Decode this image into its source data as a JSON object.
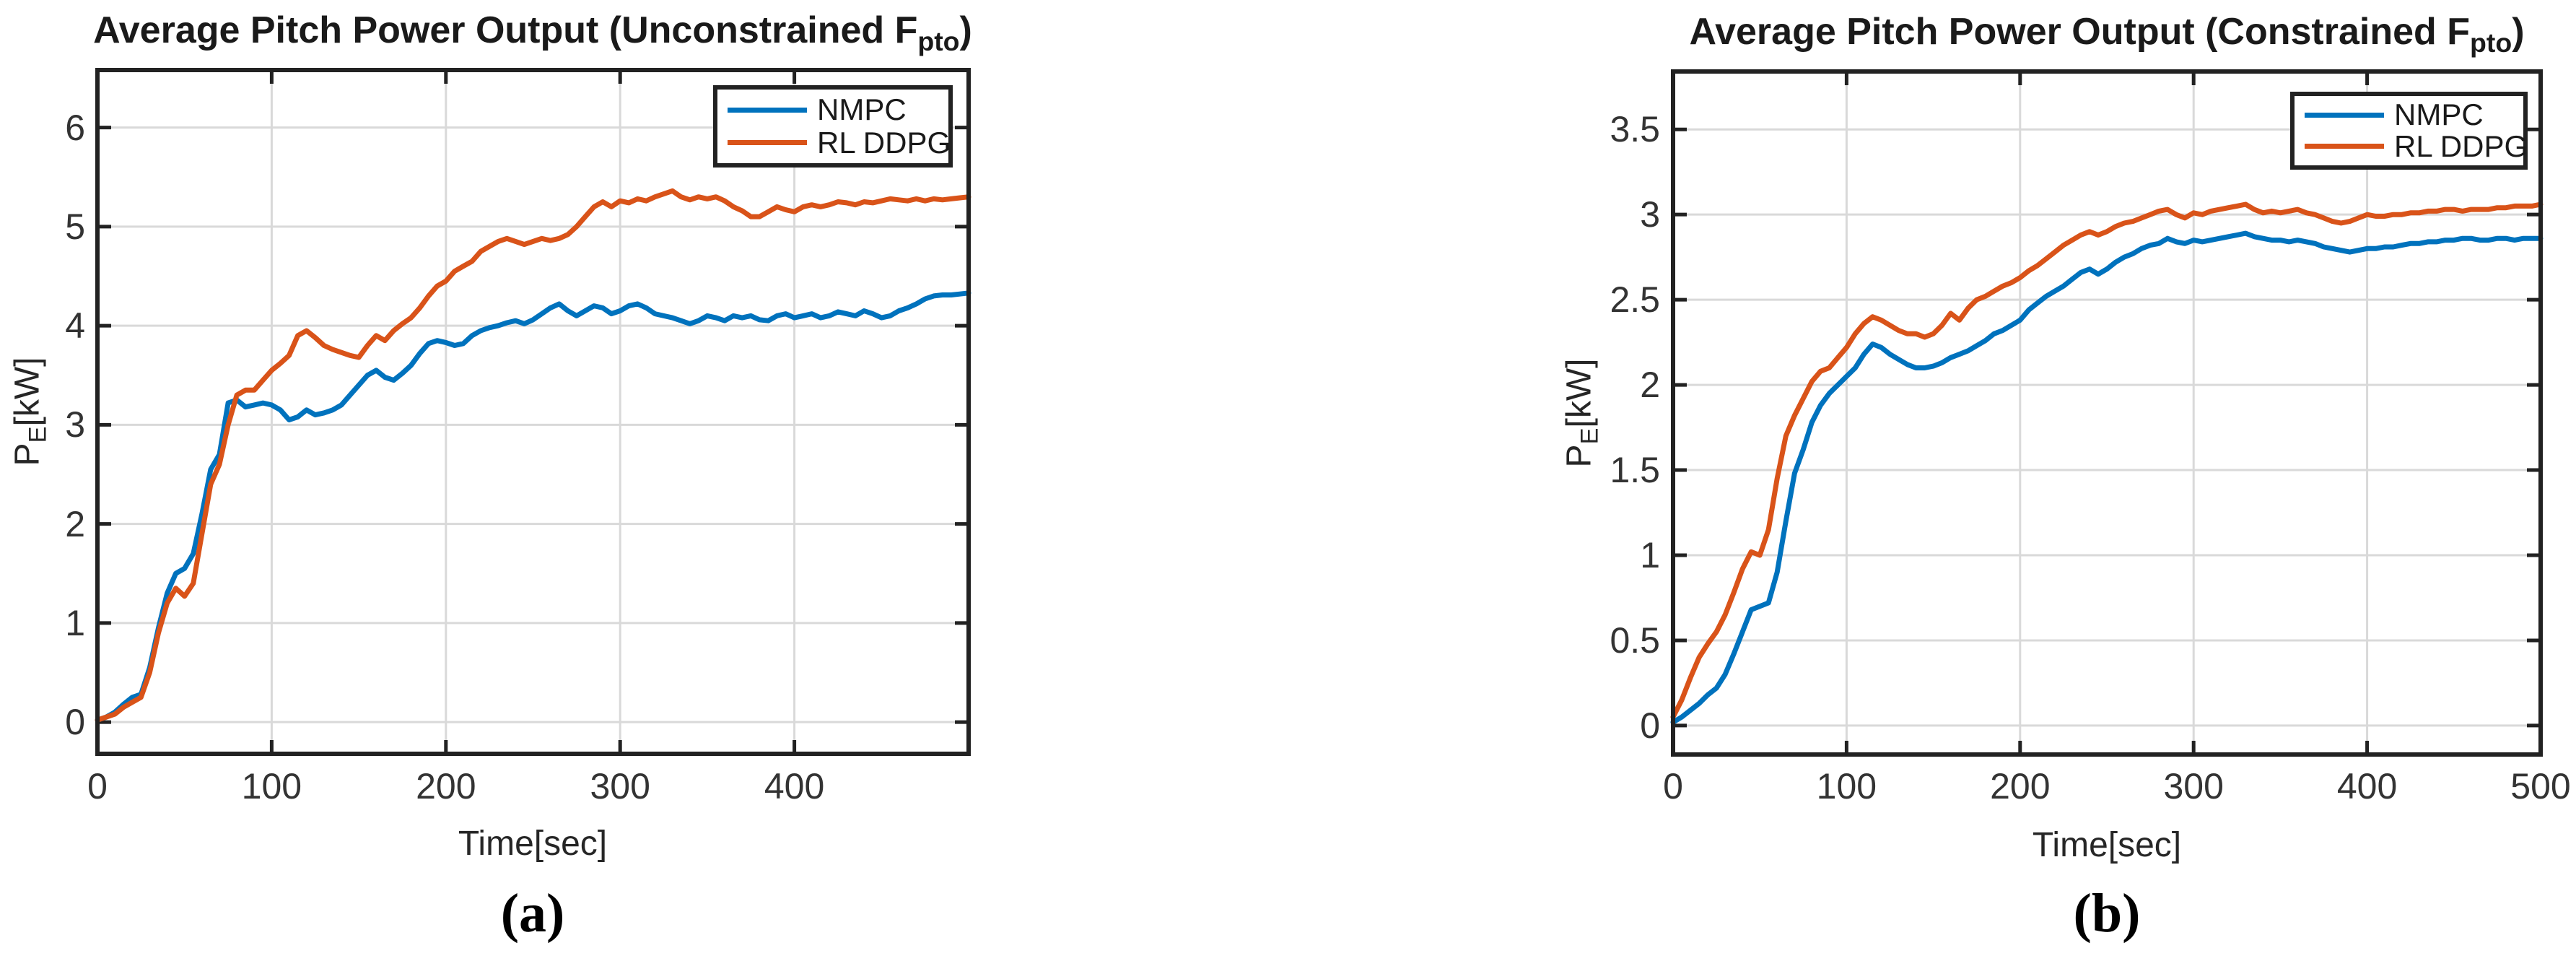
{
  "figure_caption_a": "(a)",
  "figure_caption_b": "(b)",
  "colors": {
    "nmpc_line": "#0072BD",
    "rl_ddpg_line": "#D95319",
    "grid_line": "#D9D9D9",
    "axis_box": "#222222",
    "tick_text": "#333333",
    "title_text": "#1A1A1A",
    "background": "#FFFFFF"
  },
  "chart_data": [
    {
      "type": "line",
      "title": {
        "main": "Average Pitch Power Output (Unconstrained F",
        "sub": "pto",
        "end": ")"
      },
      "xlabel": "Time[sec]",
      "ylabel": {
        "main": "P",
        "sub": "E",
        "end": "[kW]"
      },
      "caption": "(a)",
      "grid": true,
      "legend_position": "top-right",
      "xlim": [
        0,
        500
      ],
      "ylim": [
        -0.32,
        6.58
      ],
      "xticks": [
        {
          "v": 0,
          "label": "0"
        },
        {
          "v": 100,
          "label": "100"
        },
        {
          "v": 200,
          "label": "200"
        },
        {
          "v": 300,
          "label": "300"
        },
        {
          "v": 400,
          "label": "400"
        },
        {
          "v": 500,
          "label": ""
        }
      ],
      "yticks": [
        {
          "v": 0,
          "label": "0"
        },
        {
          "v": 1,
          "label": "1"
        },
        {
          "v": 2,
          "label": "2"
        },
        {
          "v": 3,
          "label": "3"
        },
        {
          "v": 4,
          "label": "4"
        },
        {
          "v": 5,
          "label": "5"
        },
        {
          "v": 6,
          "label": "6"
        }
      ],
      "series": [
        {
          "name": "NMPC",
          "color": "#0072BD",
          "x_start": 0,
          "x_step": 5,
          "values": [
            0.02,
            0.05,
            0.1,
            0.18,
            0.25,
            0.28,
            0.55,
            0.95,
            1.3,
            1.5,
            1.55,
            1.7,
            2.1,
            2.55,
            2.7,
            3.22,
            3.25,
            3.18,
            3.2,
            3.22,
            3.2,
            3.15,
            3.05,
            3.08,
            3.15,
            3.1,
            3.12,
            3.15,
            3.2,
            3.3,
            3.4,
            3.5,
            3.55,
            3.48,
            3.45,
            3.52,
            3.6,
            3.72,
            3.82,
            3.85,
            3.83,
            3.8,
            3.82,
            3.9,
            3.95,
            3.98,
            4.0,
            4.03,
            4.05,
            4.02,
            4.06,
            4.12,
            4.18,
            4.22,
            4.15,
            4.1,
            4.15,
            4.2,
            4.18,
            4.12,
            4.15,
            4.2,
            4.22,
            4.18,
            4.12,
            4.1,
            4.08,
            4.05,
            4.02,
            4.05,
            4.1,
            4.08,
            4.05,
            4.1,
            4.08,
            4.1,
            4.06,
            4.05,
            4.1,
            4.12,
            4.08,
            4.1,
            4.12,
            4.08,
            4.1,
            4.14,
            4.12,
            4.1,
            4.15,
            4.12,
            4.08,
            4.1,
            4.15,
            4.18,
            4.22,
            4.27,
            4.3,
            4.31,
            4.31,
            4.32,
            4.33
          ]
        },
        {
          "name": "RL DDPG",
          "color": "#D95319",
          "x_start": 0,
          "x_step": 5,
          "values": [
            0.02,
            0.05,
            0.08,
            0.15,
            0.2,
            0.25,
            0.5,
            0.9,
            1.2,
            1.35,
            1.27,
            1.4,
            1.9,
            2.4,
            2.6,
            3.0,
            3.3,
            3.35,
            3.35,
            3.45,
            3.55,
            3.62,
            3.7,
            3.9,
            3.95,
            3.88,
            3.8,
            3.76,
            3.73,
            3.7,
            3.68,
            3.8,
            3.9,
            3.85,
            3.95,
            4.02,
            4.08,
            4.18,
            4.3,
            4.4,
            4.45,
            4.55,
            4.6,
            4.65,
            4.75,
            4.8,
            4.85,
            4.88,
            4.85,
            4.82,
            4.85,
            4.88,
            4.86,
            4.88,
            4.92,
            5.0,
            5.1,
            5.2,
            5.25,
            5.2,
            5.26,
            5.24,
            5.28,
            5.26,
            5.3,
            5.33,
            5.36,
            5.3,
            5.27,
            5.3,
            5.28,
            5.3,
            5.26,
            5.2,
            5.16,
            5.1,
            5.1,
            5.15,
            5.2,
            5.17,
            5.15,
            5.2,
            5.22,
            5.2,
            5.22,
            5.25,
            5.24,
            5.22,
            5.25,
            5.24,
            5.26,
            5.28,
            5.27,
            5.26,
            5.28,
            5.26,
            5.28,
            5.27,
            5.28,
            5.29,
            5.3
          ]
        }
      ]
    },
    {
      "type": "line",
      "title": {
        "main": "Average Pitch Power Output (Constrained F",
        "sub": "pto",
        "end": ")"
      },
      "xlabel": "Time[sec]",
      "ylabel": {
        "main": "P",
        "sub": "E",
        "end": "[kW]"
      },
      "caption": "(b)",
      "grid": true,
      "legend_position": "top-right",
      "xlim": [
        0,
        500
      ],
      "ylim": [
        -0.17,
        3.84
      ],
      "xticks": [
        {
          "v": 0,
          "label": "0"
        },
        {
          "v": 100,
          "label": "100"
        },
        {
          "v": 200,
          "label": "200"
        },
        {
          "v": 300,
          "label": "300"
        },
        {
          "v": 400,
          "label": "400"
        },
        {
          "v": 500,
          "label": "500"
        }
      ],
      "yticks": [
        {
          "v": 0,
          "label": "0"
        },
        {
          "v": 0.5,
          "label": "0.5"
        },
        {
          "v": 1,
          "label": "1"
        },
        {
          "v": 1.5,
          "label": "1.5"
        },
        {
          "v": 2,
          "label": "2"
        },
        {
          "v": 2.5,
          "label": "2.5"
        },
        {
          "v": 3,
          "label": "3"
        },
        {
          "v": 3.5,
          "label": "3.5"
        }
      ],
      "series": [
        {
          "name": "NMPC",
          "color": "#0072BD",
          "x_start": 0,
          "x_step": 5,
          "values": [
            0.02,
            0.05,
            0.09,
            0.13,
            0.18,
            0.22,
            0.3,
            0.42,
            0.55,
            0.68,
            0.7,
            0.72,
            0.9,
            1.2,
            1.48,
            1.62,
            1.78,
            1.88,
            1.95,
            2.0,
            2.05,
            2.1,
            2.18,
            2.24,
            2.22,
            2.18,
            2.15,
            2.12,
            2.1,
            2.1,
            2.11,
            2.13,
            2.16,
            2.18,
            2.2,
            2.23,
            2.26,
            2.3,
            2.32,
            2.35,
            2.38,
            2.44,
            2.48,
            2.52,
            2.55,
            2.58,
            2.62,
            2.66,
            2.68,
            2.65,
            2.68,
            2.72,
            2.75,
            2.77,
            2.8,
            2.82,
            2.83,
            2.86,
            2.84,
            2.83,
            2.85,
            2.84,
            2.85,
            2.86,
            2.87,
            2.88,
            2.89,
            2.87,
            2.86,
            2.85,
            2.85,
            2.84,
            2.85,
            2.84,
            2.83,
            2.81,
            2.8,
            2.79,
            2.78,
            2.79,
            2.8,
            2.8,
            2.81,
            2.81,
            2.82,
            2.83,
            2.83,
            2.84,
            2.84,
            2.85,
            2.85,
            2.86,
            2.86,
            2.85,
            2.85,
            2.86,
            2.86,
            2.85,
            2.86,
            2.86,
            2.86
          ]
        },
        {
          "name": "RL DDPG",
          "color": "#D95319",
          "x_start": 0,
          "x_step": 5,
          "values": [
            0.05,
            0.15,
            0.28,
            0.4,
            0.48,
            0.55,
            0.65,
            0.78,
            0.92,
            1.02,
            1.0,
            1.15,
            1.45,
            1.7,
            1.82,
            1.92,
            2.02,
            2.08,
            2.1,
            2.16,
            2.22,
            2.3,
            2.36,
            2.4,
            2.38,
            2.35,
            2.32,
            2.3,
            2.3,
            2.28,
            2.3,
            2.35,
            2.42,
            2.38,
            2.45,
            2.5,
            2.52,
            2.55,
            2.58,
            2.6,
            2.63,
            2.67,
            2.7,
            2.74,
            2.78,
            2.82,
            2.85,
            2.88,
            2.9,
            2.88,
            2.9,
            2.93,
            2.95,
            2.96,
            2.98,
            3.0,
            3.02,
            3.03,
            3.0,
            2.98,
            3.01,
            3.0,
            3.02,
            3.03,
            3.04,
            3.05,
            3.06,
            3.03,
            3.01,
            3.02,
            3.01,
            3.02,
            3.03,
            3.01,
            3.0,
            2.98,
            2.96,
            2.95,
            2.96,
            2.98,
            3.0,
            2.99,
            2.99,
            3.0,
            3.0,
            3.01,
            3.01,
            3.02,
            3.02,
            3.03,
            3.03,
            3.02,
            3.03,
            3.03,
            3.03,
            3.04,
            3.04,
            3.05,
            3.05,
            3.05,
            3.06
          ]
        }
      ]
    }
  ]
}
